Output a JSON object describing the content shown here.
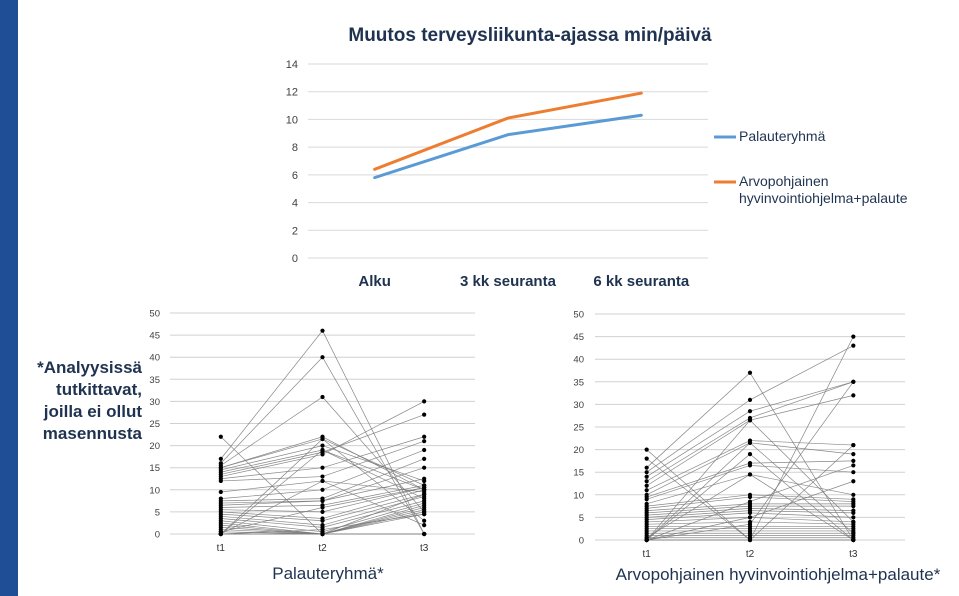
{
  "side_note": {
    "lines": [
      "*Analyysissä",
      "tutkittavat,",
      "joilla ei ollut",
      "masennusta"
    ]
  },
  "colors": {
    "accent_bar": "#1f4e96",
    "series_palaute": "#5b9bd5",
    "series_arvo": "#ed7d31",
    "text_dark": "#1f3350",
    "grid": "#d9d9d9"
  },
  "chart_data": [
    {
      "type": "line",
      "title": "Muutos terveysliikunta-ajassa min/päivä",
      "categories": [
        "Alku",
        "3 kk seuranta",
        "6 kk seuranta"
      ],
      "ylim": [
        0,
        14
      ],
      "yticks": [
        0,
        2,
        4,
        6,
        8,
        10,
        12,
        14
      ],
      "grid": true,
      "legend": "right",
      "series": [
        {
          "name": "Palauteryhmä",
          "values": [
            5.8,
            8.9,
            10.3
          ],
          "color": "#5b9bd5"
        },
        {
          "name": "Arvopohjainen hyvinvointiohjelma+palaute",
          "values": [
            6.4,
            10.1,
            11.9
          ],
          "color": "#ed7d31"
        }
      ]
    },
    {
      "type": "line",
      "title": "Palauteryhmä*",
      "categories": [
        "t1",
        "t2",
        "t3"
      ],
      "ylim": [
        0,
        50
      ],
      "yticks": [
        0,
        5,
        10,
        15,
        20,
        25,
        30,
        35,
        40,
        45,
        50
      ],
      "grid": true,
      "individuals": [
        [
          22,
          0,
          0
        ],
        [
          17,
          46,
          0
        ],
        [
          16,
          40,
          0
        ],
        [
          15.5,
          31,
          5
        ],
        [
          15,
          22,
          10
        ],
        [
          15,
          21.5,
          11
        ],
        [
          14.5,
          20,
          12
        ],
        [
          14,
          19,
          8
        ],
        [
          13.5,
          18.5,
          27
        ],
        [
          13,
          18,
          30
        ],
        [
          12.5,
          15,
          22
        ],
        [
          12,
          13,
          21
        ],
        [
          9.5,
          12,
          9.5
        ],
        [
          8,
          10,
          19
        ],
        [
          7.5,
          8,
          17
        ],
        [
          7,
          7.5,
          15
        ],
        [
          6.5,
          7.5,
          12.5
        ],
        [
          6,
          6.5,
          11
        ],
        [
          5.5,
          5,
          10.5
        ],
        [
          5,
          3.5,
          10
        ],
        [
          4.5,
          3,
          9
        ],
        [
          4,
          2,
          8.5
        ],
        [
          3.5,
          1.5,
          7.5
        ],
        [
          3,
          0.5,
          7
        ],
        [
          2.5,
          0,
          6
        ],
        [
          2,
          0,
          5.5
        ],
        [
          1.5,
          0,
          5
        ],
        [
          1,
          0,
          4.5
        ],
        [
          0.5,
          0,
          6.5
        ],
        [
          0,
          0,
          9
        ],
        [
          0,
          1,
          4.5
        ],
        [
          0,
          0,
          0
        ],
        [
          0,
          12,
          2
        ],
        [
          0,
          19,
          10
        ],
        [
          0,
          21.5,
          3
        ],
        [
          0.5,
          6,
          10.5
        ]
      ]
    },
    {
      "type": "line",
      "title": "Arvopohjainen hyvinvointiohjelma+palaute*",
      "categories": [
        "t1",
        "t2",
        "t3"
      ],
      "ylim": [
        0,
        50
      ],
      "yticks": [
        0,
        5,
        10,
        15,
        20,
        25,
        30,
        35,
        40,
        45,
        50
      ],
      "grid": true,
      "individuals": [
        [
          20,
          0,
          0
        ],
        [
          18,
          0,
          45
        ],
        [
          16,
          37,
          0
        ],
        [
          15,
          31,
          43
        ],
        [
          14,
          28.5,
          35
        ],
        [
          13,
          27,
          35
        ],
        [
          12,
          26.5,
          32
        ],
        [
          11,
          22,
          21
        ],
        [
          10,
          21.5,
          19
        ],
        [
          9.5,
          17,
          17.5
        ],
        [
          9,
          16.5,
          15
        ],
        [
          8,
          14.5,
          10
        ],
        [
          7.5,
          10,
          9
        ],
        [
          7,
          9.5,
          8.5
        ],
        [
          6.5,
          8,
          8
        ],
        [
          6,
          7.5,
          7.5
        ],
        [
          5.5,
          7,
          6.5
        ],
        [
          5,
          6.5,
          6
        ],
        [
          4.5,
          6,
          5
        ],
        [
          4,
          5,
          4
        ],
        [
          3.5,
          4,
          3.5
        ],
        [
          3,
          3,
          3
        ],
        [
          2.5,
          2.5,
          2.5
        ],
        [
          2,
          2,
          2
        ],
        [
          1.5,
          1.5,
          1.5
        ],
        [
          1,
          1,
          1
        ],
        [
          0.5,
          0.5,
          0.5
        ],
        [
          0,
          0,
          0
        ],
        [
          0,
          21.5,
          1.5
        ],
        [
          0,
          19,
          0
        ],
        [
          0,
          26.5,
          4
        ],
        [
          0,
          8.5,
          16.5
        ],
        [
          0,
          5,
          13
        ],
        [
          0.5,
          14.5,
          0
        ],
        [
          0,
          0,
          21
        ],
        [
          0,
          3.5,
          35
        ]
      ]
    }
  ]
}
